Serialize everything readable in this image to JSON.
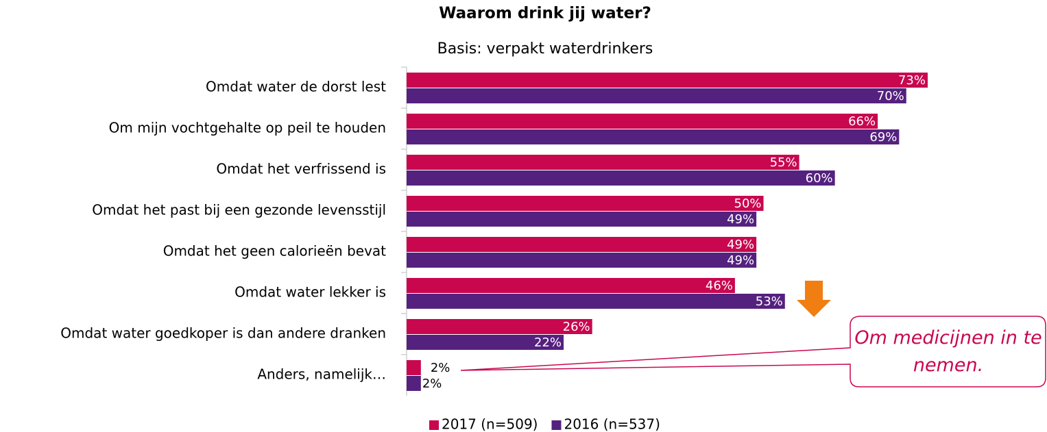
{
  "chart_data": {
    "type": "bar",
    "orientation": "horizontal",
    "title": "Waarom drink jij water?",
    "subtitle": "Basis: verpakt waterdrinkers",
    "categories": [
      "Omdat water de dorst lest",
      "Om mijn vochtgehalte op peil te houden",
      "Omdat het verfrissend is",
      "Omdat het past bij een gezonde levensstijl",
      "Omdat het geen calorieën bevat",
      "Omdat water lekker is",
      "Omdat water goedkoper is dan andere dranken",
      "Anders, namelijk…"
    ],
    "series": [
      {
        "name": "2017 (n=509)",
        "color": "#c8074f",
        "values": [
          73,
          66,
          55,
          50,
          49,
          46,
          26,
          2
        ],
        "value_labels": [
          "73%",
          "66%",
          "55%",
          "50%",
          "49%",
          "46%",
          "26%",
          "2%"
        ]
      },
      {
        "name": "2016 (n=537)",
        "color": "#55217f",
        "values": [
          70,
          69,
          60,
          49,
          49,
          53,
          22,
          2
        ],
        "value_labels": [
          "70%",
          "69%",
          "60%",
          "49%",
          "49%",
          "53%",
          "22%",
          "2%"
        ]
      }
    ],
    "annotations": [
      "Om medicijnen in te nemen."
    ],
    "legend": "bottom"
  }
}
